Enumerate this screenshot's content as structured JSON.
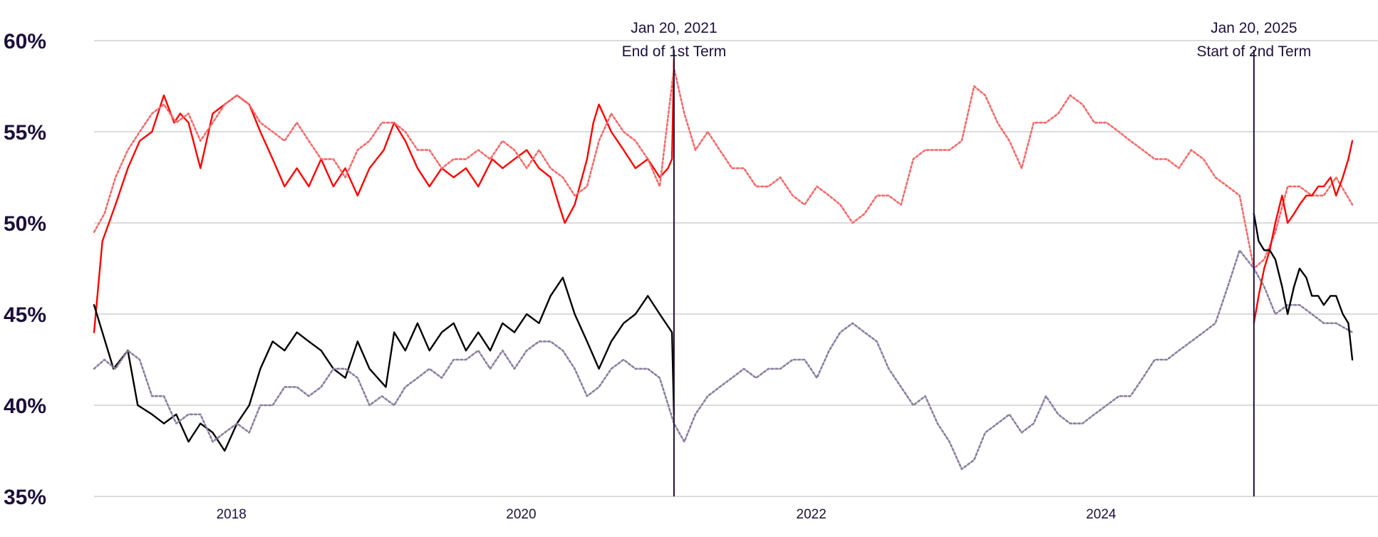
{
  "chart_data": {
    "type": "line",
    "title": "",
    "xlabel": "",
    "ylabel": "",
    "x_range": [
      "2017-01-20",
      "2025-09-25"
    ],
    "ylim": [
      35,
      60
    ],
    "y_ticks": [
      35,
      40,
      45,
      50,
      55,
      60
    ],
    "y_tick_labels": [
      "35%",
      "40%",
      "45%",
      "50%",
      "55%",
      "60%"
    ],
    "x_ticks": [
      "2018-01-01",
      "2020-01-01",
      "2022-01-01",
      "2024-01-01"
    ],
    "x_tick_labels": [
      "2018",
      "2020",
      "2022",
      "2024"
    ],
    "grid": "horizontal",
    "legend": "none",
    "colors": {
      "disapprove": "#ff0000",
      "approve": "#000000",
      "disapprove_dotted": "#f36a6a",
      "approve_dotted": "#8a7fa0",
      "annotation": "#1c0f3a",
      "grid": "#cfcfcf"
    },
    "annotations": [
      {
        "date": "2021-01-20",
        "line1": "Jan 20, 2021",
        "line2": "End of 1st Term"
      },
      {
        "date": "2025-01-20",
        "line1": "Jan 20, 2025",
        "line2": "Start of 2nd Term"
      }
    ],
    "series": [
      {
        "style": "solid",
        "color": "#ff0000",
        "x": [
          "2017-01-20",
          "2017-02-10",
          "2017-03-15",
          "2017-04-15",
          "2017-05-15",
          "2017-06-15",
          "2017-07-15",
          "2017-08-10",
          "2017-08-25",
          "2017-09-15",
          "2017-10-15",
          "2017-11-15",
          "2017-12-15",
          "2018-01-15",
          "2018-02-15",
          "2018-03-15",
          "2018-04-15",
          "2018-05-15",
          "2018-06-15",
          "2018-07-15",
          "2018-08-15",
          "2018-09-15",
          "2018-10-15",
          "2018-11-15",
          "2018-12-15",
          "2019-01-20",
          "2019-02-15",
          "2019-03-15",
          "2019-04-15",
          "2019-05-15",
          "2019-06-15",
          "2019-07-15",
          "2019-08-15",
          "2019-09-15",
          "2019-10-20",
          "2019-11-15",
          "2019-12-15",
          "2020-01-15",
          "2020-02-15",
          "2020-03-15",
          "2020-04-05",
          "2020-04-20",
          "2020-05-15",
          "2020-06-15",
          "2020-07-01",
          "2020-07-15",
          "2020-08-15",
          "2020-09-15",
          "2020-10-15",
          "2020-11-15",
          "2020-12-15",
          "2021-01-05",
          "2021-01-15",
          "2021-01-20"
        ],
        "values": [
          44,
          49,
          51,
          53,
          54.5,
          55,
          57,
          55.5,
          56,
          55.5,
          53,
          56,
          56.5,
          57,
          56.5,
          55,
          53.5,
          52,
          53,
          52,
          53.5,
          52,
          53,
          51.5,
          53,
          54,
          55.5,
          54.5,
          53,
          52,
          53,
          52.5,
          53,
          52,
          53.5,
          53,
          53.5,
          54,
          53,
          52.5,
          51,
          50,
          51,
          53.5,
          55.5,
          56.5,
          55,
          54,
          53,
          53.5,
          52.5,
          53,
          53.5,
          59
        ]
      },
      {
        "style": "solid",
        "color": "#000000",
        "x": [
          "2017-01-20",
          "2017-02-10",
          "2017-03-10",
          "2017-04-15",
          "2017-05-10",
          "2017-06-15",
          "2017-07-15",
          "2017-08-15",
          "2017-09-15",
          "2017-10-15",
          "2017-11-15",
          "2017-12-15",
          "2018-01-15",
          "2018-02-15",
          "2018-03-15",
          "2018-04-15",
          "2018-05-15",
          "2018-06-15",
          "2018-07-15",
          "2018-08-15",
          "2018-09-15",
          "2018-10-15",
          "2018-11-15",
          "2018-12-15",
          "2019-01-25",
          "2019-02-15",
          "2019-03-15",
          "2019-04-15",
          "2019-05-15",
          "2019-06-15",
          "2019-07-15",
          "2019-08-15",
          "2019-09-15",
          "2019-10-15",
          "2019-11-15",
          "2019-12-15",
          "2020-01-15",
          "2020-02-15",
          "2020-03-15",
          "2020-04-15",
          "2020-05-15",
          "2020-06-15",
          "2020-07-15",
          "2020-08-15",
          "2020-09-15",
          "2020-10-15",
          "2020-11-15",
          "2020-12-15",
          "2021-01-15",
          "2021-01-20"
        ],
        "values": [
          45.5,
          44,
          42,
          43,
          40,
          39.5,
          39,
          39.5,
          38,
          39,
          38.5,
          37.5,
          39,
          40,
          42,
          43.5,
          43,
          44,
          43.5,
          43,
          42,
          41.5,
          43.5,
          42,
          41,
          44,
          43,
          44.5,
          43,
          44,
          44.5,
          43,
          44,
          43,
          44.5,
          44,
          45,
          44.5,
          46,
          47,
          45,
          43.5,
          42,
          43.5,
          44.5,
          45,
          46,
          45,
          44,
          39.5
        ]
      },
      {
        "style": "dotted",
        "color": "#f36a6a",
        "x": [
          "2017-01-20",
          "2017-02-15",
          "2017-03-15",
          "2017-04-15",
          "2017-05-15",
          "2017-06-15",
          "2017-07-15",
          "2017-08-15",
          "2017-09-15",
          "2017-10-15",
          "2017-11-15",
          "2017-12-15",
          "2018-01-15",
          "2018-02-15",
          "2018-03-15",
          "2018-04-15",
          "2018-05-15",
          "2018-06-15",
          "2018-07-15",
          "2018-08-15",
          "2018-09-15",
          "2018-10-15",
          "2018-11-15",
          "2018-12-15",
          "2019-01-15",
          "2019-02-15",
          "2019-03-15",
          "2019-04-15",
          "2019-05-15",
          "2019-06-15",
          "2019-07-15",
          "2019-08-15",
          "2019-09-15",
          "2019-10-15",
          "2019-11-15",
          "2019-12-15",
          "2020-01-15",
          "2020-02-15",
          "2020-03-15",
          "2020-04-15",
          "2020-05-15",
          "2020-06-15",
          "2020-07-15",
          "2020-08-15",
          "2020-09-15",
          "2020-10-15",
          "2020-11-15",
          "2020-12-15",
          "2021-01-20",
          "2021-02-15",
          "2021-03-15",
          "2021-04-15",
          "2021-05-15",
          "2021-06-15",
          "2021-07-15",
          "2021-08-15",
          "2021-09-15",
          "2021-10-15",
          "2021-11-15",
          "2021-12-15",
          "2022-01-15",
          "2022-02-15",
          "2022-03-15",
          "2022-04-15",
          "2022-05-15",
          "2022-06-15",
          "2022-07-15",
          "2022-08-15",
          "2022-09-15",
          "2022-10-15",
          "2022-11-15",
          "2022-12-15",
          "2023-01-15",
          "2023-02-15",
          "2023-03-15",
          "2023-04-15",
          "2023-05-15",
          "2023-06-15",
          "2023-07-15",
          "2023-08-15",
          "2023-09-15",
          "2023-10-15",
          "2023-11-15",
          "2023-12-15",
          "2024-01-15",
          "2024-02-15",
          "2024-03-15",
          "2024-04-15",
          "2024-05-15",
          "2024-06-15",
          "2024-07-15",
          "2024-08-15",
          "2024-09-15",
          "2024-10-15",
          "2024-11-15",
          "2024-12-15",
          "2025-01-20",
          "2025-02-15",
          "2025-03-15",
          "2025-04-15",
          "2025-05-15",
          "2025-06-15",
          "2025-07-15",
          "2025-08-15",
          "2025-09-25"
        ],
        "values": [
          49.5,
          50.5,
          52.5,
          54,
          55,
          56,
          56.5,
          55.5,
          56,
          54.5,
          55.5,
          56.5,
          57,
          56.5,
          55.5,
          55,
          54.5,
          55.5,
          54.5,
          53.5,
          53.5,
          52.5,
          54,
          54.5,
          55.5,
          55.5,
          55,
          54,
          54,
          53,
          53.5,
          53.5,
          54,
          53.5,
          54.5,
          54,
          53,
          54,
          53,
          52.5,
          51.5,
          52,
          54.5,
          56,
          55,
          54.5,
          53.5,
          52,
          58.5,
          56,
          54,
          55,
          54,
          53,
          53,
          52,
          52,
          52.5,
          51.5,
          51,
          52,
          51.5,
          51,
          50,
          50.5,
          51.5,
          51.5,
          51,
          53.5,
          54,
          54,
          54,
          54.5,
          57.5,
          57,
          55.5,
          54.5,
          53,
          55.5,
          55.5,
          56,
          57,
          56.5,
          55.5,
          55.5,
          55,
          54.5,
          54,
          53.5,
          53.5,
          53,
          54,
          53.5,
          52.5,
          52,
          51.5,
          47.5,
          48,
          49.5,
          52,
          52,
          51.5,
          51.5,
          52.5,
          51
        ]
      },
      {
        "style": "dotted",
        "color": "#8a7fa0",
        "x": [
          "2017-01-20",
          "2017-02-15",
          "2017-03-15",
          "2017-04-15",
          "2017-05-15",
          "2017-06-15",
          "2017-07-15",
          "2017-08-15",
          "2017-09-15",
          "2017-10-15",
          "2017-11-15",
          "2017-12-15",
          "2018-01-15",
          "2018-02-15",
          "2018-03-15",
          "2018-04-15",
          "2018-05-15",
          "2018-06-15",
          "2018-07-15",
          "2018-08-15",
          "2018-09-15",
          "2018-10-15",
          "2018-11-15",
          "2018-12-15",
          "2019-01-15",
          "2019-02-15",
          "2019-03-15",
          "2019-04-15",
          "2019-05-15",
          "2019-06-15",
          "2019-07-15",
          "2019-08-15",
          "2019-09-15",
          "2019-10-15",
          "2019-11-15",
          "2019-12-15",
          "2020-01-15",
          "2020-02-15",
          "2020-03-15",
          "2020-04-15",
          "2020-05-15",
          "2020-06-15",
          "2020-07-15",
          "2020-08-15",
          "2020-09-15",
          "2020-10-15",
          "2020-11-15",
          "2020-12-15",
          "2021-01-20",
          "2021-02-15",
          "2021-03-15",
          "2021-04-15",
          "2021-05-15",
          "2021-06-15",
          "2021-07-15",
          "2021-08-15",
          "2021-09-15",
          "2021-10-15",
          "2021-11-15",
          "2021-12-15",
          "2022-01-15",
          "2022-02-15",
          "2022-03-15",
          "2022-04-15",
          "2022-05-15",
          "2022-06-15",
          "2022-07-15",
          "2022-08-15",
          "2022-09-15",
          "2022-10-15",
          "2022-11-15",
          "2022-12-15",
          "2023-01-15",
          "2023-02-15",
          "2023-03-15",
          "2023-04-15",
          "2023-05-15",
          "2023-06-15",
          "2023-07-15",
          "2023-08-15",
          "2023-09-15",
          "2023-10-15",
          "2023-11-15",
          "2023-12-15",
          "2024-01-15",
          "2024-02-15",
          "2024-03-15",
          "2024-04-15",
          "2024-05-15",
          "2024-06-15",
          "2024-07-15",
          "2024-08-15",
          "2024-09-15",
          "2024-10-15",
          "2024-11-15",
          "2024-12-15",
          "2025-01-20",
          "2025-02-15",
          "2025-03-15",
          "2025-04-15",
          "2025-05-15",
          "2025-06-15",
          "2025-07-15",
          "2025-08-15",
          "2025-09-25"
        ],
        "values": [
          42,
          42.5,
          42,
          43,
          42.5,
          40.5,
          40.5,
          39,
          39.5,
          39.5,
          38,
          38.5,
          39,
          38.5,
          40,
          40,
          41,
          41,
          40.5,
          41,
          42,
          42,
          41.5,
          40,
          40.5,
          40,
          41,
          41.5,
          42,
          41.5,
          42.5,
          42.5,
          43,
          42,
          43,
          42,
          43,
          43.5,
          43.5,
          43,
          42,
          40.5,
          41,
          42,
          42.5,
          42,
          42,
          41.5,
          39,
          38,
          39.5,
          40.5,
          41,
          41.5,
          42,
          41.5,
          42,
          42,
          42.5,
          42.5,
          41.5,
          43,
          44,
          44.5,
          44,
          43.5,
          42,
          41,
          40,
          40.5,
          39,
          38,
          36.5,
          37,
          38.5,
          39,
          39.5,
          38.5,
          39,
          40.5,
          39.5,
          39,
          39,
          39.5,
          40,
          40.5,
          40.5,
          41.5,
          42.5,
          42.5,
          43,
          43.5,
          44,
          44.5,
          46.5,
          48.5,
          47.5,
          46.5,
          45,
          45.5,
          45.5,
          45,
          44.5,
          44.5,
          44
        ]
      },
      {
        "style": "solid",
        "color": "#ff0000",
        "x": [
          "2025-01-20",
          "2025-02-01",
          "2025-02-15",
          "2025-03-01",
          "2025-03-15",
          "2025-04-01",
          "2025-04-15",
          "2025-05-01",
          "2025-05-15",
          "2025-06-01",
          "2025-06-15",
          "2025-07-01",
          "2025-07-15",
          "2025-08-01",
          "2025-08-15",
          "2025-09-01",
          "2025-09-15",
          "2025-09-25"
        ],
        "values": [
          44.5,
          46,
          47.5,
          48.5,
          50,
          51.5,
          50,
          50.5,
          51,
          51.5,
          51.5,
          52,
          52,
          52.5,
          51.5,
          52.5,
          53.5,
          54.5
        ]
      },
      {
        "style": "solid",
        "color": "#000000",
        "x": [
          "2025-01-20",
          "2025-02-01",
          "2025-02-15",
          "2025-03-01",
          "2025-03-15",
          "2025-04-01",
          "2025-04-15",
          "2025-05-01",
          "2025-05-15",
          "2025-06-01",
          "2025-06-15",
          "2025-07-01",
          "2025-07-15",
          "2025-08-01",
          "2025-08-15",
          "2025-09-01",
          "2025-09-15",
          "2025-09-25"
        ],
        "values": [
          50.5,
          49,
          48.5,
          48.5,
          48,
          46.5,
          45,
          46.5,
          47.5,
          47,
          46,
          46,
          45.5,
          46,
          46,
          45,
          44.5,
          42.5
        ]
      }
    ]
  }
}
